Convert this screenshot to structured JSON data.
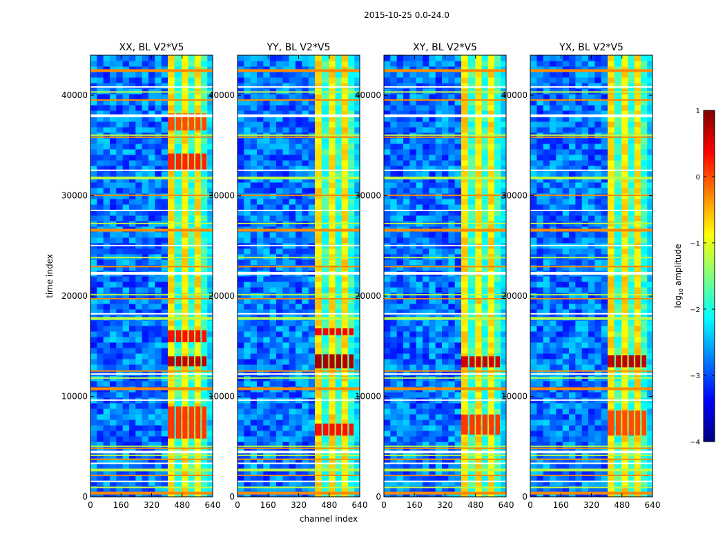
{
  "figure_title": "2015-10-25 0.0-24.0",
  "chart_data": {
    "type": "heatmap",
    "suptitle": "2015-10-25 0.0-24.0",
    "xlabel": "channel index",
    "ylabel": "time index",
    "xlim": [
      0,
      640
    ],
    "ylim": [
      0,
      44000
    ],
    "xticks": [
      0,
      160,
      320,
      480,
      640
    ],
    "yticks": [
      0,
      10000,
      20000,
      30000,
      40000
    ],
    "panels": [
      {
        "title": "XX, BL V2*V5",
        "band_start_channel": 405
      },
      {
        "title": "YY, BL V2*V5",
        "band_start_channel": 405
      },
      {
        "title": "XY, BL V2*V5",
        "band_start_channel": 405
      },
      {
        "title": "YX, BL V2*V5",
        "band_start_channel": 405
      }
    ],
    "colorbar": {
      "label": "log10 amplitude",
      "label_main": "log",
      "label_sub": "10",
      "label_rest": " amplitude",
      "min": -4,
      "max": 1,
      "ticks": [
        -4,
        -3,
        -2,
        -1,
        0,
        1
      ],
      "tick_labels": [
        "−4",
        "−3",
        "−2",
        "−1",
        "0",
        "1"
      ],
      "colormap": "jet"
    },
    "flagged_rows": [
      400,
      900,
      1500,
      2100,
      2700,
      3300,
      3700,
      4100,
      4500,
      4800,
      5000,
      9600,
      10800,
      11800,
      12200,
      12500,
      17800,
      18200,
      19700,
      20100,
      22300,
      22900,
      23800,
      25000,
      26600,
      27200,
      28500,
      30000,
      31800,
      32500,
      35800,
      36000,
      38000,
      39500,
      40300,
      40800,
      42500
    ],
    "hot_blocks": [
      {
        "panel": 0,
        "time_from": 13000,
        "time_to": 14000,
        "level": 0.7
      },
      {
        "panel": 0,
        "time_from": 15400,
        "time_to": 16600,
        "level": 0.3
      },
      {
        "panel": 0,
        "time_from": 5800,
        "time_to": 9000,
        "level": 0.1
      },
      {
        "panel": 0,
        "time_from": 32600,
        "time_to": 34200,
        "level": 0.2
      },
      {
        "panel": 0,
        "time_from": 36500,
        "time_to": 38200,
        "level": 0.0
      },
      {
        "panel": 1,
        "time_from": 12800,
        "time_to": 14200,
        "level": 0.8
      },
      {
        "panel": 1,
        "time_from": 6100,
        "time_to": 7300,
        "level": 0.3
      },
      {
        "panel": 1,
        "time_from": 16100,
        "time_to": 16800,
        "level": 0.4
      },
      {
        "panel": 2,
        "time_from": 12900,
        "time_to": 14000,
        "level": 0.6
      },
      {
        "panel": 2,
        "time_from": 6200,
        "time_to": 8200,
        "level": 0.1
      },
      {
        "panel": 3,
        "time_from": 12900,
        "time_to": 14100,
        "level": 0.7
      },
      {
        "panel": 3,
        "time_from": 6100,
        "time_to": 8600,
        "level": 0.0
      }
    ]
  }
}
